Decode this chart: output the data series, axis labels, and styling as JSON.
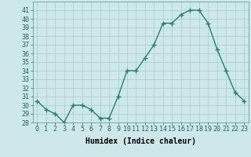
{
  "x": [
    0,
    1,
    2,
    3,
    4,
    5,
    6,
    7,
    8,
    9,
    10,
    11,
    12,
    13,
    14,
    15,
    16,
    17,
    18,
    19,
    20,
    21,
    22,
    23
  ],
  "y": [
    30.5,
    29.5,
    29.0,
    28.0,
    30.0,
    30.0,
    29.5,
    28.5,
    28.5,
    31.0,
    34.0,
    34.0,
    35.5,
    37.0,
    39.5,
    39.5,
    40.5,
    41.0,
    41.0,
    39.5,
    36.5,
    34.0,
    31.5,
    30.5
  ],
  "line_color": "#2e7d6e",
  "marker": "D",
  "marker_size": 2,
  "line_width": 1.0,
  "bg_color": "#cce8e8",
  "grid_color": "#b0d0d0",
  "xlabel": "Humidex (Indice chaleur)",
  "xlabel_fontsize": 7,
  "tick_fontsize": 6,
  "ylim": [
    28,
    42
  ],
  "yticks": [
    28,
    29,
    30,
    31,
    32,
    33,
    34,
    35,
    36,
    37,
    38,
    39,
    40,
    41
  ],
  "xlim": [
    -0.5,
    23.5
  ],
  "xticks": [
    0,
    1,
    2,
    3,
    4,
    5,
    6,
    7,
    8,
    9,
    10,
    11,
    12,
    13,
    14,
    15,
    16,
    17,
    18,
    19,
    20,
    21,
    22,
    23
  ]
}
